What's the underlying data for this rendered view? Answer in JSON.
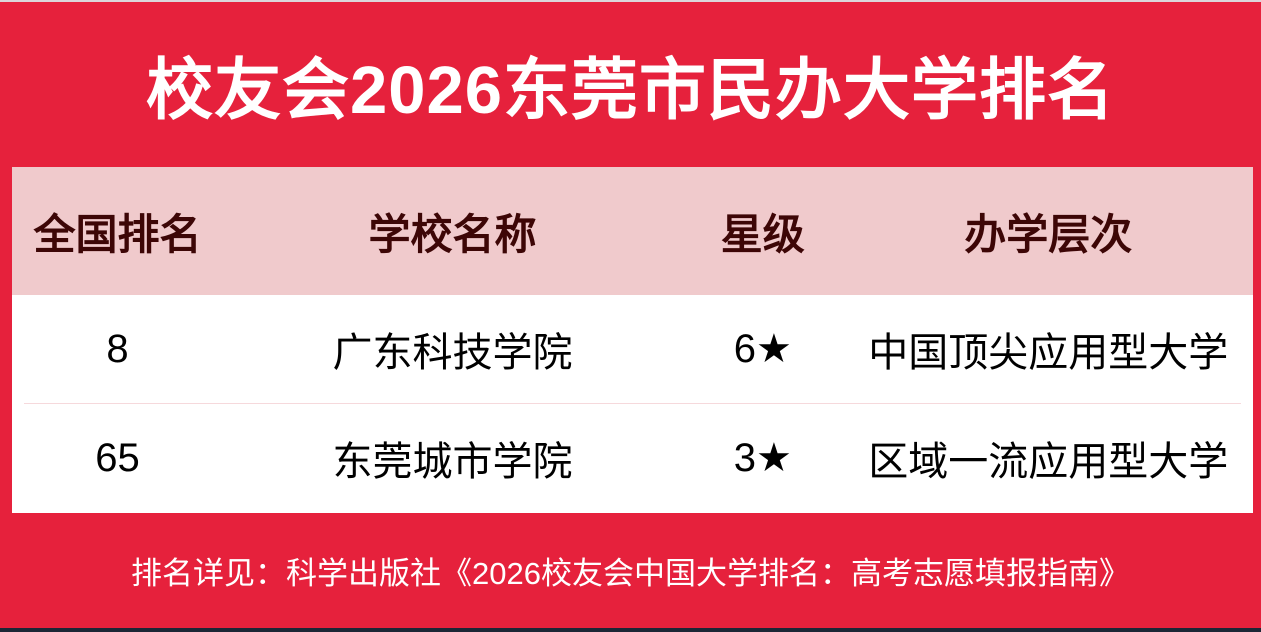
{
  "page": {
    "title": "校友会2026东莞市民办大学排名",
    "footer": "排名详见：科学出版社《2026校友会中国大学排名：高考志愿填报指南》"
  },
  "colors": {
    "background_red": "#E6213C",
    "header_pink": "#F0CACC",
    "header_text_maroon": "#3D0606",
    "row_background": "#FFFFFF",
    "row_text": "#000000",
    "divider_pink": "#F6D9DC",
    "title_text": "#FFFFFF",
    "bottom_strip_navy": "#1C2736"
  },
  "table": {
    "columns": [
      "全国排名",
      "学校名称",
      "星级",
      "办学层次"
    ],
    "rows": [
      {
        "rank": "8",
        "school": "广东科技学院",
        "star": "6★",
        "level": "中国顶尖应用型大学"
      },
      {
        "rank": "65",
        "school": "东莞城市学院",
        "star": "3★",
        "level": "区域一流应用型大学"
      }
    ]
  },
  "chart_data": {
    "type": "table",
    "title": "校友会2026东莞市民办大学排名",
    "columns": [
      "全国排名",
      "学校名称",
      "星级",
      "办学层次"
    ],
    "rows": [
      [
        "8",
        "广东科技学院",
        "6★",
        "中国顶尖应用型大学"
      ],
      [
        "65",
        "东莞城市学院",
        "3★",
        "区域一流应用型大学"
      ]
    ],
    "footnote": "排名详见：科学出版社《2026校友会中国大学排名：高考志愿填报指南》"
  }
}
